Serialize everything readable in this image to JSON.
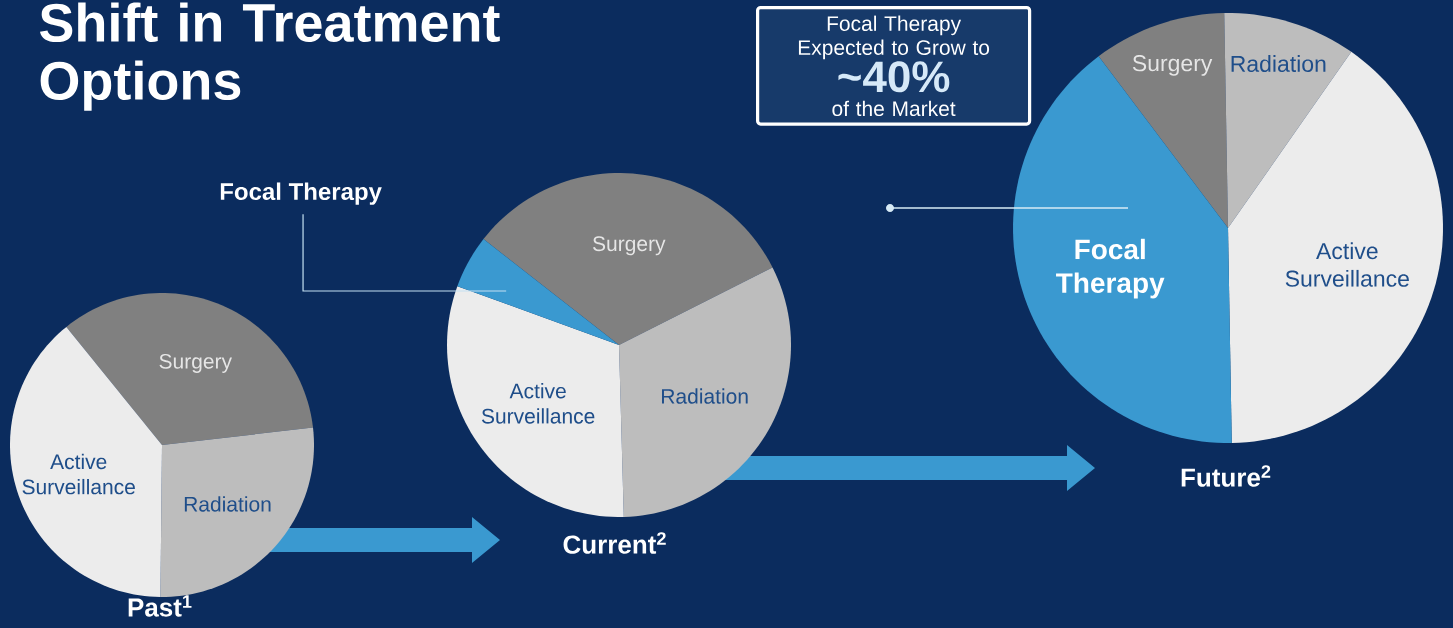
{
  "chart_data": [
    {
      "type": "pie",
      "title": "Past$^{1}$",
      "categories": [
        "Surgery",
        "Radiation",
        "Active Surveillance"
      ],
      "values": [
        34,
        27,
        39
      ],
      "colors": [
        "#808080",
        "#bdbdbd",
        "#ececec"
      ]
    },
    {
      "type": "pie",
      "title": "Current$^{2}$",
      "categories": [
        "Surgery",
        "Radiation",
        "Active Surveillance",
        "Focal Therapy"
      ],
      "values": [
        32,
        32,
        31,
        5
      ],
      "colors": [
        "#808080",
        "#bdbdbd",
        "#ececec",
        "#3a99d0"
      ]
    },
    {
      "type": "pie",
      "title": "Future$^{2}$",
      "categories": [
        "Surgery",
        "Radiation",
        "Active Surveillance",
        "Focal Therapy"
      ],
      "values": [
        10,
        10,
        40,
        40
      ],
      "colors": [
        "#808080",
        "#bdbdbd",
        "#ececec",
        "#3a99d0"
      ]
    },
    {
      "type": "other",
      "title": "Shift in Treatment Options",
      "annotations": [
        "Focal Therapy Expected to Grow to",
        "~40%",
        "of the Market"
      ]
    }
  ]
}
